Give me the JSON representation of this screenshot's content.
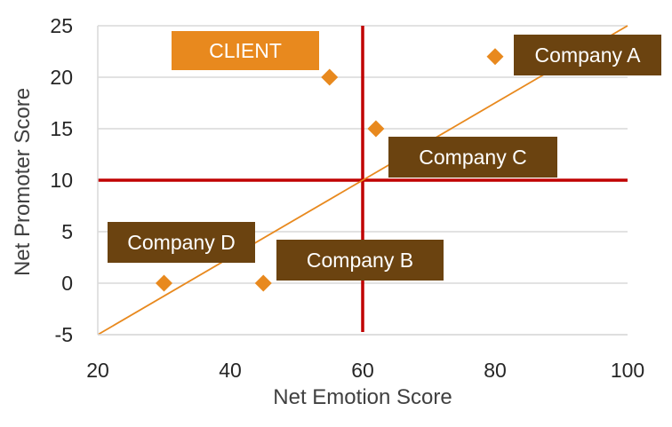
{
  "chart_data": {
    "type": "scatter",
    "xlabel": "Net Emotion Score",
    "ylabel": "Net Promoter Score",
    "xlim": [
      20,
      100
    ],
    "ylim": [
      -5,
      25
    ],
    "x_ticks": [
      20,
      40,
      60,
      80,
      100
    ],
    "y_ticks": [
      -5,
      0,
      5,
      10,
      15,
      20,
      25
    ],
    "grid": "horizontal",
    "points": [
      {
        "label": "CLIENT",
        "x": 55,
        "y": 20
      },
      {
        "label": "Company A",
        "x": 80,
        "y": 22
      },
      {
        "label": "Company C",
        "x": 62,
        "y": 15
      },
      {
        "label": "Company D",
        "x": 30,
        "y": 0
      },
      {
        "label": "Company B",
        "x": 45,
        "y": 0
      }
    ],
    "reference_lines": {
      "vertical_x": 60,
      "horizontal_y": 10
    },
    "trendline": [
      [
        20,
        -5
      ],
      [
        100,
        25
      ]
    ],
    "colors": {
      "marker": "#E8891E",
      "trendline": "#E8891E",
      "reference": "#C00000",
      "grid": "#D9D9D9",
      "label_client_bg": "#E8891E",
      "label_company_bg": "#6B4310",
      "label_text": "#ffffff",
      "axis_text": "#262626"
    }
  }
}
